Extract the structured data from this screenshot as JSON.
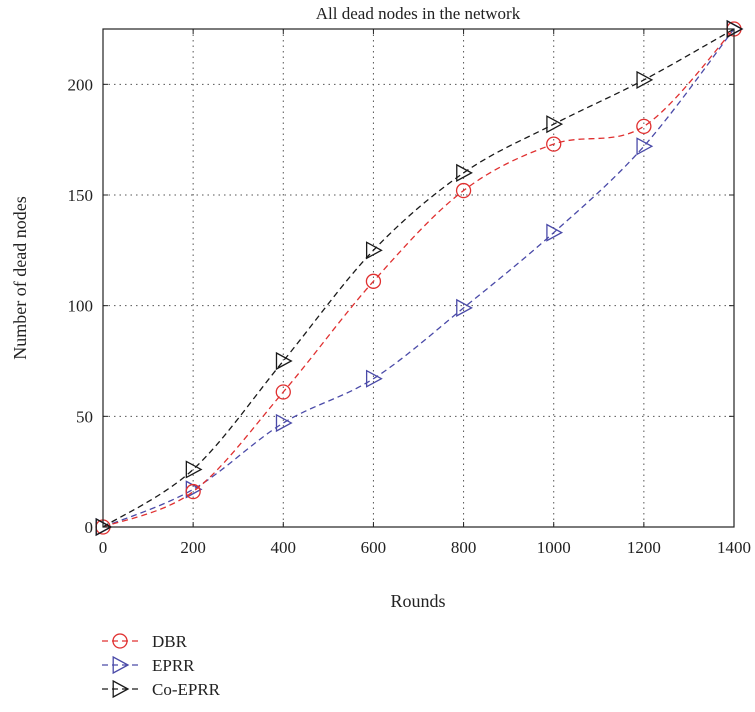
{
  "chart_data": {
    "type": "line",
    "title": "All dead nodes in the network",
    "xlabel": "Rounds",
    "ylabel": "Number of dead nodes",
    "xlim": [
      0,
      1400
    ],
    "ylim": [
      0,
      225
    ],
    "xticks": [
      0,
      200,
      400,
      600,
      800,
      1000,
      1200,
      1400
    ],
    "yticks": [
      0,
      50,
      100,
      150,
      200
    ],
    "grid": true,
    "grid_style": "dotted",
    "legend_position": "bottom-left, below plot",
    "x": [
      0,
      200,
      400,
      600,
      800,
      1000,
      1200,
      1400
    ],
    "series": [
      {
        "name": "DBR",
        "values": [
          0,
          16,
          61,
          111,
          152,
          173,
          181,
          225
        ],
        "color": "#e03030",
        "marker": "circle",
        "line": "dashed"
      },
      {
        "name": "EPRR",
        "values": [
          0,
          17,
          47,
          67,
          99,
          133,
          172,
          225
        ],
        "color": "#4a4aa8",
        "marker": "triangle-right",
        "line": "dashed"
      },
      {
        "name": "Co-EPRR",
        "values": [
          0,
          26,
          75,
          125,
          160,
          182,
          202,
          225
        ],
        "color": "#1a1a1a",
        "marker": "triangle-right",
        "line": "dashed"
      }
    ]
  }
}
